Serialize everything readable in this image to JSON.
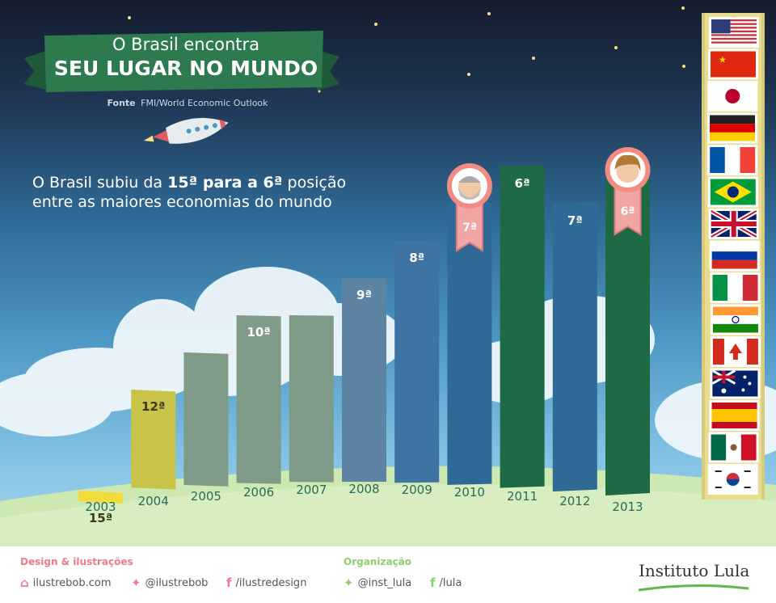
{
  "header": {
    "title_line1": "O Brasil encontra",
    "title_line2": "SEU LUGAR NO MUNDO",
    "source_label": "Fonte",
    "source_text": "FMI/World Economic Outlook"
  },
  "subtitle": {
    "line1_prefix": "O Brasil subiu da ",
    "line1_bold": "15ª para a 6ª",
    "line1_suffix": " posição",
    "line2": "entre as maiores economias do mundo"
  },
  "chart_data": {
    "type": "bar",
    "categories": [
      "2003",
      "2004",
      "2005",
      "2006",
      "2007",
      "2008",
      "2009",
      "2010",
      "2011",
      "2012",
      "2013"
    ],
    "values": [
      15,
      12,
      11,
      10,
      10,
      9,
      8,
      7,
      6,
      7,
      6
    ],
    "data_labels": [
      "15ª",
      "12ª",
      "",
      "10ª",
      "",
      "9ª",
      "8ª",
      "7ª",
      "6ª",
      "7ª",
      "6ª"
    ],
    "colors": [
      "#f1dc3c",
      "#c9c34a",
      "#7f9a86",
      "#7f9a86",
      "#7f9a86",
      "#5d84a3",
      "#3e74a3",
      "#2f6a96",
      "#1e6a44",
      "#2f6a96",
      "#1e6a44"
    ],
    "badges": [
      {
        "category": "2010",
        "label": "7ª",
        "portrait": "bearded-man"
      },
      {
        "category": "2013",
        "label": "6ª",
        "portrait": "woman"
      }
    ]
  },
  "flags": [
    "usa-flag",
    "china-flag",
    "japan-flag",
    "germany-flag",
    "france-flag",
    "brazil-flag",
    "uk-flag",
    "russia-flag",
    "italy-flag",
    "india-flag",
    "canada-flag",
    "australia-flag",
    "spain-flag",
    "mexico-flag",
    "south-korea-flag"
  ],
  "footer": {
    "design_title": "Design & ilustrações",
    "design_site": "ilustrebob.com",
    "design_twitter": "@ilustrebob",
    "design_facebook": "/ilustredesign",
    "org_title": "Organização",
    "org_twitter": "@inst_lula",
    "org_facebook": "/lula",
    "brand": "Instituto Lula"
  },
  "colors": {
    "ribbon": "#2c7a4d",
    "ribbon_dark": "#1f5a38",
    "footer_accent": "#f07a8c",
    "social_green": "#8fcf6f"
  }
}
